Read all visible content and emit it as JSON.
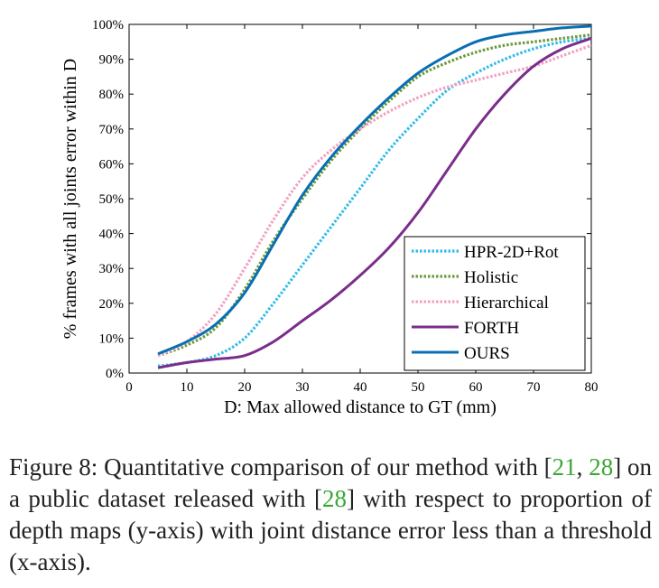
{
  "chart_data": {
    "type": "line",
    "xlabel": "D: Max allowed distance to GT (mm)",
    "ylabel": "% frames with all joints error within D",
    "xlim": [
      0,
      80
    ],
    "ylim": [
      0,
      100
    ],
    "xticks": [
      "0",
      "10",
      "20",
      "30",
      "40",
      "50",
      "60",
      "70",
      "80"
    ],
    "yticks": [
      "0%",
      "10%",
      "20%",
      "30%",
      "40%",
      "50%",
      "60%",
      "70%",
      "80%",
      "90%",
      "100%"
    ],
    "grid": false,
    "legend_position": "bottom-right",
    "x": [
      5,
      10,
      15,
      20,
      25,
      30,
      35,
      40,
      45,
      50,
      55,
      60,
      65,
      70,
      75,
      80
    ],
    "series": [
      {
        "name": "HPR-2D+Rot",
        "color": "#33bbe8",
        "dash": "dotted",
        "values": [
          2,
          3,
          5,
          10,
          20,
          31,
          42,
          53,
          64,
          73,
          81,
          86,
          90,
          93,
          95,
          96
        ]
      },
      {
        "name": "Holistic",
        "color": "#6a9a3a",
        "dash": "dotted",
        "values": [
          5,
          8,
          13,
          24,
          38,
          50,
          61,
          70,
          78,
          85,
          89,
          92,
          94,
          95,
          96,
          97
        ]
      },
      {
        "name": "Hierarchical",
        "color": "#f0a2c4",
        "dash": "dotted",
        "values": [
          5,
          9,
          17,
          30,
          44,
          56,
          64,
          70,
          75,
          79,
          82,
          84,
          86,
          88,
          91,
          94
        ]
      },
      {
        "name": "FORTH",
        "color": "#7b2d8b",
        "dash": "solid",
        "values": [
          1.5,
          3,
          4,
          5,
          9,
          15,
          21,
          28,
          36,
          46,
          58,
          70,
          80,
          88,
          93,
          96
        ]
      },
      {
        "name": "OURS",
        "color": "#0a6eb4",
        "dash": "solid",
        "values": [
          5.5,
          9,
          14,
          23,
          37,
          51,
          62,
          71,
          79,
          86,
          91,
          95,
          97,
          98,
          99,
          99.5
        ]
      }
    ]
  },
  "caption": {
    "segments": [
      {
        "text": "Figure 8: Quantitative comparison of our method with [",
        "ref": false
      },
      {
        "text": "21",
        "ref": true
      },
      {
        "text": ", ",
        "ref": false
      },
      {
        "text": "28",
        "ref": true
      },
      {
        "text": "] on a public dataset released with [",
        "ref": false
      },
      {
        "text": "28",
        "ref": true
      },
      {
        "text": "] with respect to proportion of depth maps (y-axis) with joint distance error less than a threshold (x-axis).",
        "ref": false
      }
    ]
  }
}
